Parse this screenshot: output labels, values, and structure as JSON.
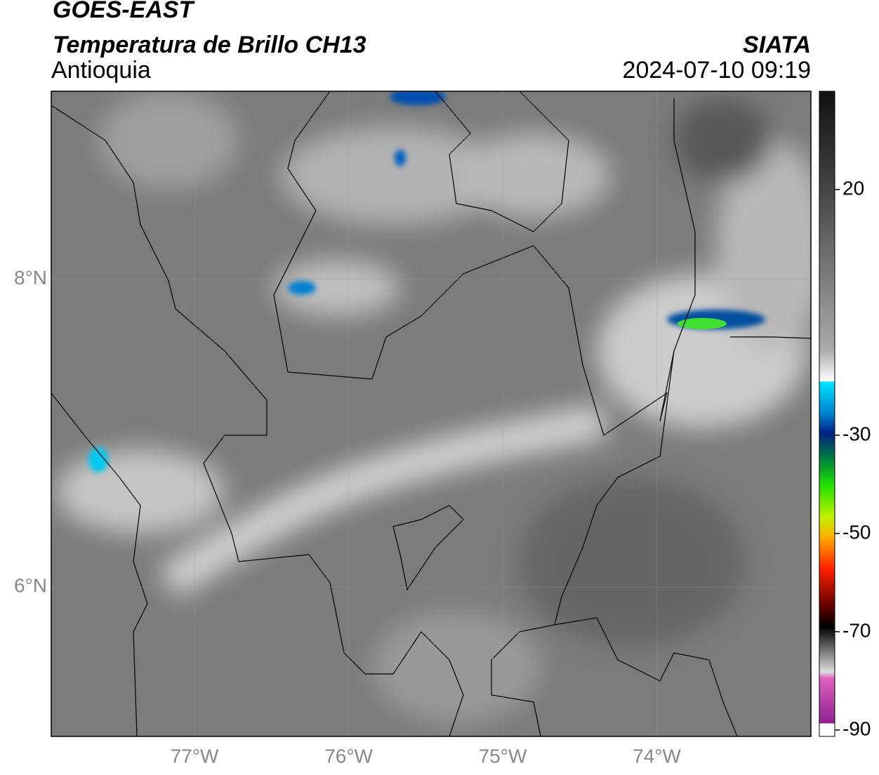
{
  "map": {
    "title": "GOES-EAST",
    "subtitle": "Temperatura de Brillo CH13",
    "region": "Antioquia",
    "source": "SIATA",
    "timestamp": "2024-07-10 09:19",
    "xlim": [
      -77.93,
      -73.0
    ],
    "ylim": [
      5.03,
      9.22
    ],
    "xticks": [
      {
        "value": -77,
        "label": "77°W"
      },
      {
        "value": -76,
        "label": "76°W"
      },
      {
        "value": -75,
        "label": "75°W"
      },
      {
        "value": -74,
        "label": "74°W"
      }
    ],
    "yticks": [
      {
        "value": 8,
        "label": "8°N"
      },
      {
        "value": 6,
        "label": "6°N"
      }
    ],
    "grid": true,
    "colorbar": {
      "lim": [
        -91.3,
        40
      ],
      "ticks": [
        20,
        -30,
        -50,
        -70,
        -90
      ]
    }
  }
}
